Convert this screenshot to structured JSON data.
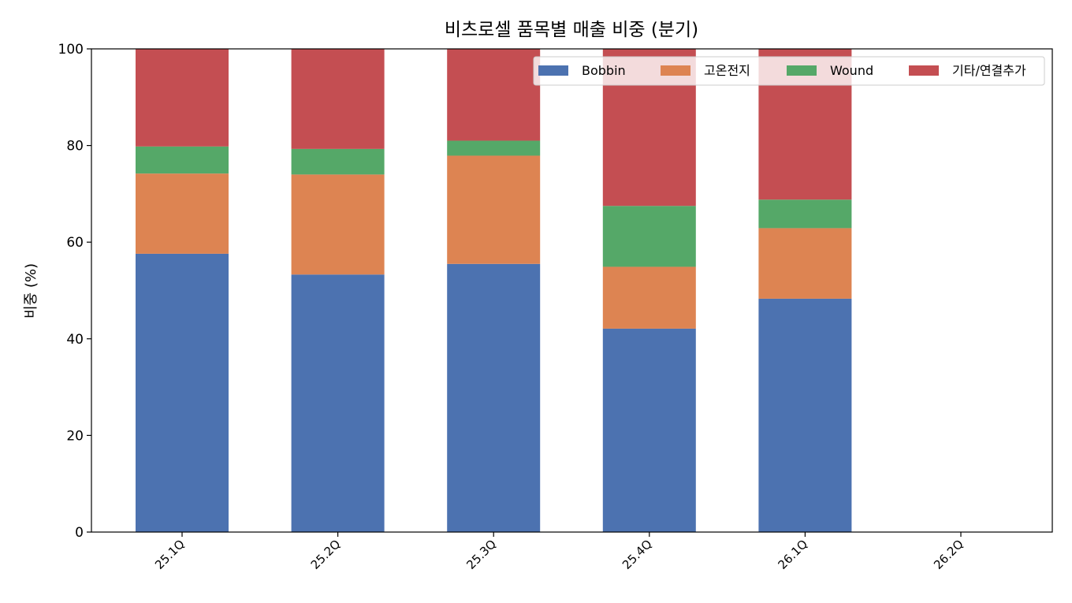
{
  "chart_data": {
    "type": "bar",
    "stacked": true,
    "title": "비츠로셀 품목별 매출 비중 (분기)",
    "xlabel": "",
    "ylabel": "비중 (%)",
    "ylim": [
      0,
      100
    ],
    "yticks": [
      "0",
      "20",
      "40",
      "60",
      "80",
      "100"
    ],
    "categories": [
      "25.1Q",
      "25.2Q",
      "25.3Q",
      "25.4Q",
      "26.1Q",
      "26.2Q"
    ],
    "series": [
      {
        "name": "Bobbin",
        "color": "#4c72b0",
        "values": [
          57.6,
          53.3,
          55.5,
          42.1,
          48.3,
          0
        ]
      },
      {
        "name": "고온전지",
        "color": "#dd8452",
        "values": [
          16.6,
          20.7,
          22.4,
          12.8,
          14.6,
          0
        ]
      },
      {
        "name": "Wound",
        "color": "#55a868",
        "values": [
          5.6,
          5.3,
          3.1,
          12.6,
          5.9,
          0
        ]
      },
      {
        "name": "기타/연결추가",
        "color": "#c44e52",
        "values": [
          20.2,
          20.7,
          19.0,
          32.5,
          31.2,
          0
        ]
      }
    ],
    "grid": false,
    "legend_position": "top-right",
    "legend_columns": 4
  }
}
